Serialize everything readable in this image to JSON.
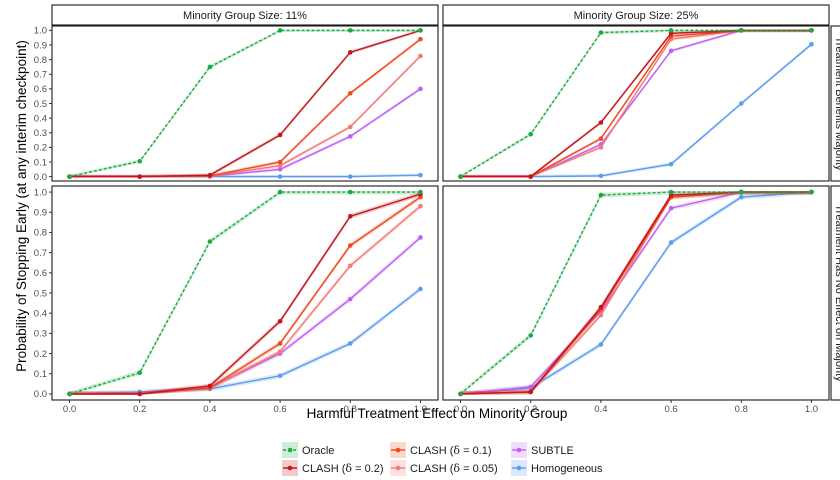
{
  "chart_data": {
    "type": "line",
    "xlabel": "Harmful Treatment Effect on Minority Group",
    "ylabel": "Probability of Stopping Early (at any interim checkpoint)",
    "x": [
      0.0,
      0.2,
      0.4,
      0.6,
      0.8,
      1.0
    ],
    "xticks": [
      "0.0",
      "0.2",
      "0.4",
      "0.6",
      "0.8",
      "1.0"
    ],
    "yticks": [
      "0.0",
      "0.1",
      "0.2",
      "0.3",
      "0.4",
      "0.5",
      "0.6",
      "0.7",
      "0.8",
      "0.9",
      "1.0"
    ],
    "ylim": [
      -0.03,
      1.03
    ],
    "xlim": [
      -0.05,
      1.05
    ],
    "grid": false,
    "legend_position": "bottom",
    "legend_parts": {
      "clash_prefix": "CLASH (",
      "delta": "δ",
      "eq": " = ",
      "close": ")"
    },
    "series_meta": [
      {
        "key": "oracle",
        "name": "Oracle",
        "color": "#1aab40",
        "dashed": true
      },
      {
        "key": "clash02",
        "name": "CLASH (δ = 0.2)",
        "delta": "0.2",
        "color": "#c4161c",
        "dashed": false
      },
      {
        "key": "clash01",
        "name": "CLASH (δ = 0.1)",
        "delta": "0.1",
        "color": "#ee4a1f",
        "dashed": false
      },
      {
        "key": "clash005",
        "name": "CLASH (δ = 0.05)",
        "delta": "0.05",
        "color": "#f47a76",
        "dashed": false
      },
      {
        "key": "subtle",
        "name": "SUBTLE",
        "color": "#c05ff5",
        "dashed": false
      },
      {
        "key": "homog",
        "name": "Homogeneous",
        "color": "#5b9bf2",
        "dashed": false
      }
    ],
    "col_titles": [
      "Minority Group Size: 11%",
      "Minority Group Size: 25%"
    ],
    "row_titles": [
      "Treatment Benefits Majority",
      "Treatment Has No Effect on Majority"
    ],
    "panels": [
      {
        "row": 0,
        "col": 0,
        "series": {
          "oracle": [
            0.0,
            0.105,
            0.75,
            1.0,
            1.0,
            1.0
          ],
          "clash02": [
            0.0,
            0.0,
            0.01,
            0.285,
            0.85,
            1.0
          ],
          "clash01": [
            0.0,
            0.0,
            0.005,
            0.1,
            0.57,
            0.94
          ],
          "clash005": [
            0.0,
            0.0,
            0.003,
            0.075,
            0.34,
            0.825
          ],
          "subtle": [
            0.0,
            0.0,
            0.002,
            0.05,
            0.275,
            0.6
          ],
          "homog": [
            0.0,
            0.0,
            0.0,
            0.0,
            0.0,
            0.01
          ]
        }
      },
      {
        "row": 0,
        "col": 1,
        "series": {
          "oracle": [
            0.0,
            0.29,
            0.985,
            1.0,
            1.0,
            1.0
          ],
          "clash02": [
            0.0,
            0.0,
            0.37,
            0.98,
            1.0,
            1.0
          ],
          "clash01": [
            0.0,
            0.0,
            0.26,
            0.96,
            1.0,
            1.0
          ],
          "clash005": [
            0.0,
            0.0,
            0.2,
            0.94,
            1.0,
            1.0
          ],
          "subtle": [
            0.0,
            0.0,
            0.22,
            0.86,
            1.0,
            1.0
          ],
          "homog": [
            0.0,
            0.0,
            0.005,
            0.085,
            0.5,
            0.905
          ]
        }
      },
      {
        "row": 1,
        "col": 0,
        "series": {
          "oracle": [
            0.0,
            0.105,
            0.755,
            1.0,
            1.0,
            1.0
          ],
          "clash02": [
            0.0,
            0.0,
            0.04,
            0.36,
            0.88,
            0.99
          ],
          "clash01": [
            0.0,
            0.0,
            0.03,
            0.25,
            0.735,
            0.975
          ],
          "clash005": [
            0.0,
            0.0,
            0.03,
            0.21,
            0.635,
            0.93
          ],
          "subtle": [
            0.0,
            0.0,
            0.03,
            0.2,
            0.47,
            0.775
          ],
          "homog": [
            0.0,
            0.01,
            0.025,
            0.09,
            0.25,
            0.52
          ]
        }
      },
      {
        "row": 1,
        "col": 1,
        "series": {
          "oracle": [
            0.0,
            0.29,
            0.985,
            1.0,
            1.0,
            1.0
          ],
          "clash02": [
            0.0,
            0.01,
            0.43,
            0.985,
            1.0,
            1.0
          ],
          "clash01": [
            0.0,
            0.01,
            0.42,
            0.975,
            1.0,
            1.0
          ],
          "clash005": [
            0.0,
            0.01,
            0.39,
            0.975,
            1.0,
            1.0
          ],
          "subtle": [
            0.0,
            0.035,
            0.41,
            0.92,
            1.0,
            1.0
          ],
          "homog": [
            0.0,
            0.03,
            0.245,
            0.75,
            0.975,
            1.0
          ]
        }
      }
    ]
  }
}
